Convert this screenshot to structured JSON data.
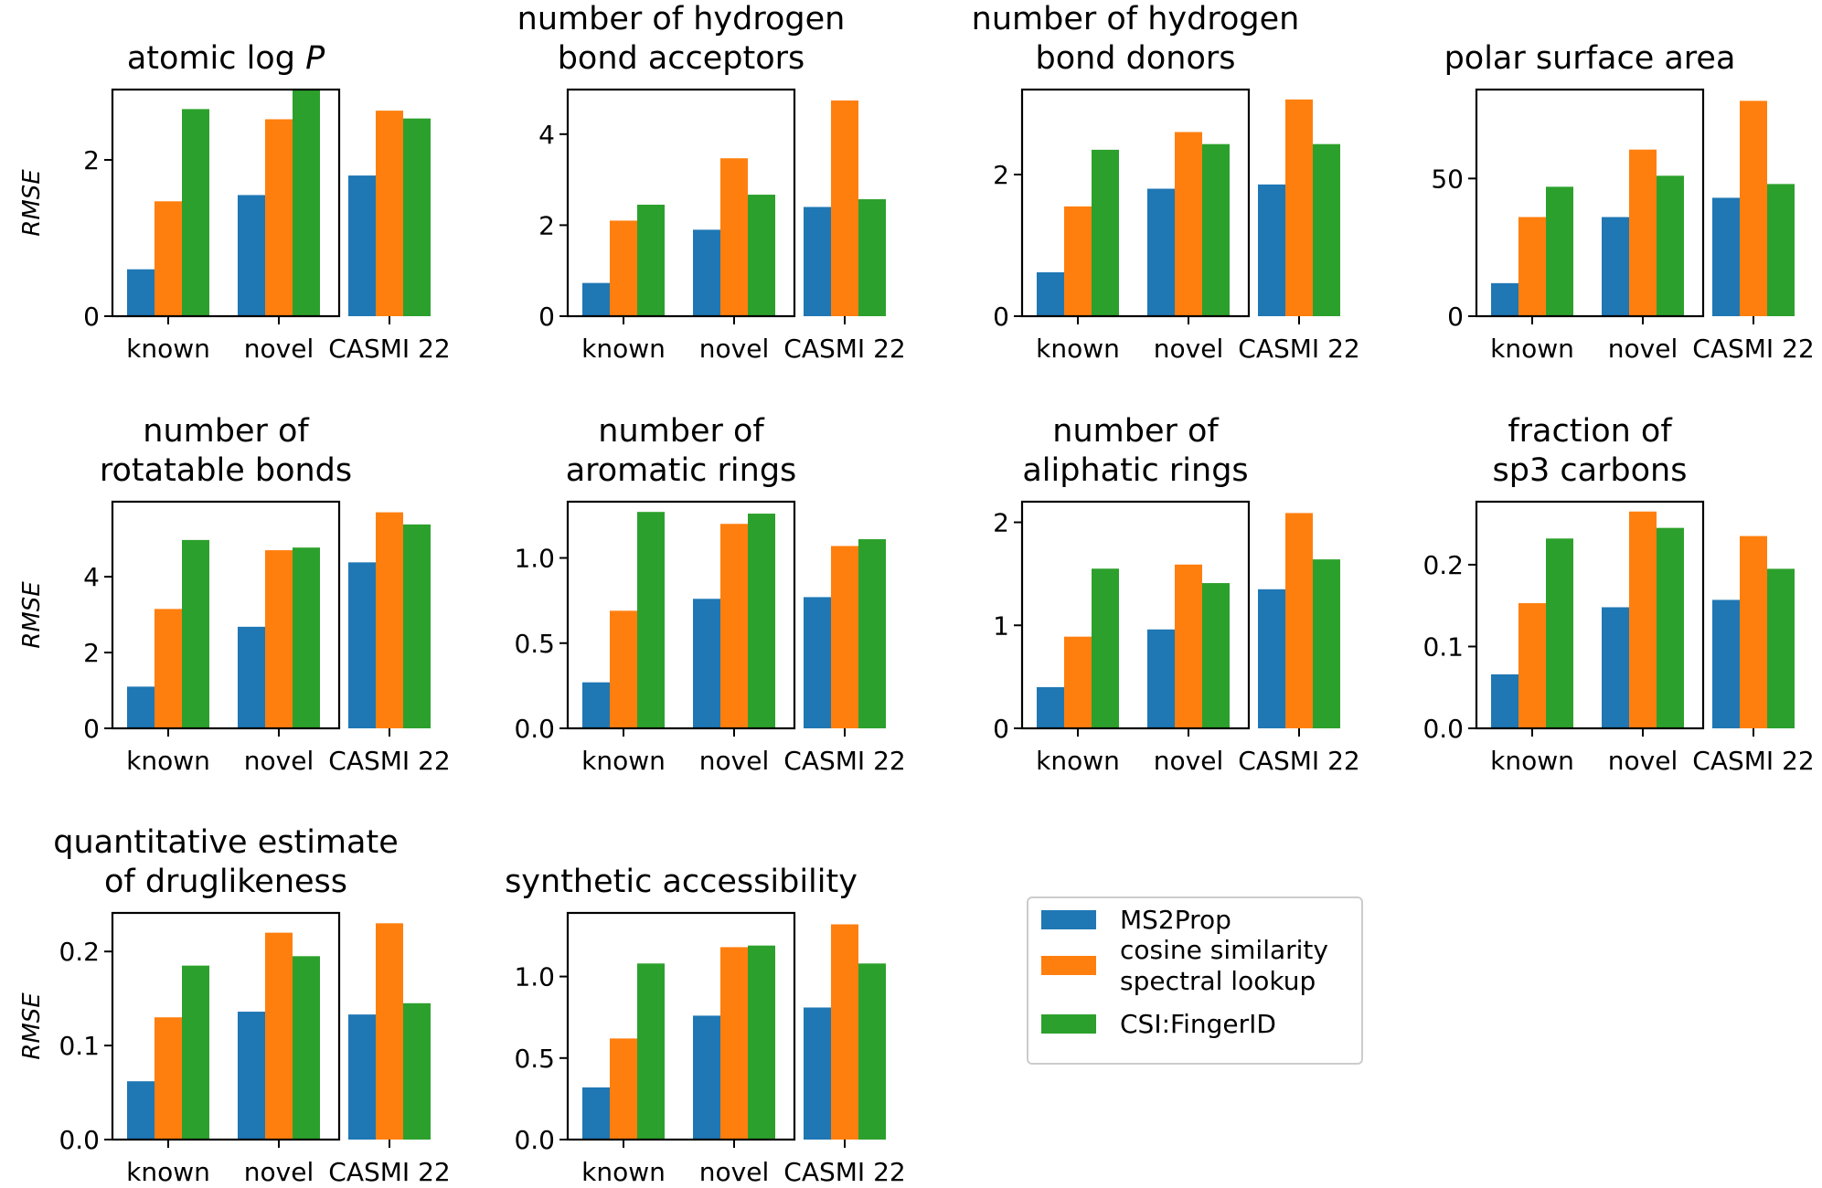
{
  "legend": [
    {
      "name": "MS2Prop",
      "color": "#1f77b4"
    },
    {
      "name": "cosine similarity\nspectral lookup",
      "color": "#ff7f0e"
    },
    {
      "name": "CSI:FingerID",
      "color": "#2ca02c"
    }
  ],
  "chart_data": [
    {
      "type": "bar",
      "title": [
        "atomic log ",
        "P"
      ],
      "title_italic_last": true,
      "ylabel": "RMSE",
      "categories": [
        "known",
        "novel",
        "CASMI 22"
      ],
      "ylim": [
        0,
        2.9
      ],
      "yticks": [
        0,
        2
      ],
      "ytick_labels": [
        "0",
        "2"
      ],
      "series": [
        {
          "name": "MS2Prop",
          "values": [
            0.6,
            1.55,
            1.8
          ]
        },
        {
          "name": "cosine similarity spectral lookup",
          "values": [
            1.47,
            2.52,
            2.63
          ]
        },
        {
          "name": "CSI:FingerID",
          "values": [
            2.65,
            2.9,
            2.53
          ]
        }
      ]
    },
    {
      "type": "bar",
      "title": [
        "number of hydrogen",
        "bond acceptors"
      ],
      "ylabel": "",
      "categories": [
        "known",
        "novel",
        "CASMI 22"
      ],
      "ylim": [
        0,
        4.98
      ],
      "yticks": [
        0,
        2,
        4
      ],
      "ytick_labels": [
        "0",
        "2",
        "4"
      ],
      "series": [
        {
          "name": "MS2Prop",
          "values": [
            0.73,
            1.9,
            2.4
          ]
        },
        {
          "name": "cosine similarity spectral lookup",
          "values": [
            2.1,
            3.47,
            4.74
          ]
        },
        {
          "name": "CSI:FingerID",
          "values": [
            2.45,
            2.67,
            2.57
          ]
        }
      ]
    },
    {
      "type": "bar",
      "title": [
        "number of hydrogen",
        "bond donors"
      ],
      "ylabel": "",
      "categories": [
        "known",
        "novel",
        "CASMI 22"
      ],
      "ylim": [
        0,
        3.2
      ],
      "yticks": [
        0,
        2
      ],
      "ytick_labels": [
        "0",
        "2"
      ],
      "series": [
        {
          "name": "MS2Prop",
          "values": [
            0.62,
            1.8,
            1.86
          ]
        },
        {
          "name": "cosine similarity spectral lookup",
          "values": [
            1.55,
            2.6,
            3.06
          ]
        },
        {
          "name": "CSI:FingerID",
          "values": [
            2.35,
            2.43,
            2.43
          ]
        }
      ]
    },
    {
      "type": "bar",
      "title": [
        "polar surface area"
      ],
      "ylabel": "",
      "categories": [
        "known",
        "novel",
        "CASMI 22"
      ],
      "ylim": [
        0,
        82.3
      ],
      "yticks": [
        0,
        50
      ],
      "ytick_labels": [
        "0",
        "50"
      ],
      "series": [
        {
          "name": "MS2Prop",
          "values": [
            12,
            36,
            43
          ]
        },
        {
          "name": "cosine similarity spectral lookup",
          "values": [
            36,
            60.5,
            78.2
          ]
        },
        {
          "name": "CSI:FingerID",
          "values": [
            47,
            51,
            48
          ]
        }
      ]
    },
    {
      "type": "bar",
      "title": [
        "number of",
        "rotatable bonds"
      ],
      "ylabel": "RMSE",
      "categories": [
        "known",
        "novel",
        "CASMI 22"
      ],
      "ylim": [
        0,
        5.98
      ],
      "yticks": [
        0,
        2,
        4
      ],
      "ytick_labels": [
        "0",
        "2",
        "4"
      ],
      "series": [
        {
          "name": "MS2Prop",
          "values": [
            1.1,
            2.68,
            4.38
          ]
        },
        {
          "name": "cosine similarity spectral lookup",
          "values": [
            3.15,
            4.7,
            5.7
          ]
        },
        {
          "name": "CSI:FingerID",
          "values": [
            4.97,
            4.77,
            5.38
          ]
        }
      ]
    },
    {
      "type": "bar",
      "title": [
        "number of",
        "aromatic rings"
      ],
      "ylabel": "",
      "categories": [
        "known",
        "novel",
        "CASMI 22"
      ],
      "ylim": [
        0,
        1.33
      ],
      "yticks": [
        0,
        0.5,
        1.0
      ],
      "ytick_labels": [
        "0.0",
        "0.5",
        "1.0"
      ],
      "series": [
        {
          "name": "MS2Prop",
          "values": [
            0.27,
            0.76,
            0.77
          ]
        },
        {
          "name": "cosine similarity spectral lookup",
          "values": [
            0.69,
            1.2,
            1.07
          ]
        },
        {
          "name": "CSI:FingerID",
          "values": [
            1.27,
            1.26,
            1.11
          ]
        }
      ]
    },
    {
      "type": "bar",
      "title": [
        "number of",
        "aliphatic rings"
      ],
      "ylabel": "",
      "categories": [
        "known",
        "novel",
        "CASMI 22"
      ],
      "ylim": [
        0,
        2.2
      ],
      "yticks": [
        0,
        1,
        2
      ],
      "ytick_labels": [
        "0",
        "1",
        "2"
      ],
      "series": [
        {
          "name": "MS2Prop",
          "values": [
            0.4,
            0.96,
            1.35
          ]
        },
        {
          "name": "cosine similarity spectral lookup",
          "values": [
            0.89,
            1.59,
            2.09
          ]
        },
        {
          "name": "CSI:FingerID",
          "values": [
            1.55,
            1.41,
            1.64
          ]
        }
      ]
    },
    {
      "type": "bar",
      "title": [
        "fraction of",
        "sp3 carbons"
      ],
      "ylabel": "",
      "categories": [
        "known",
        "novel",
        "CASMI 22"
      ],
      "ylim": [
        0,
        0.277
      ],
      "yticks": [
        0,
        0.1,
        0.2
      ],
      "ytick_labels": [
        "0.0",
        "0.1",
        "0.2"
      ],
      "series": [
        {
          "name": "MS2Prop",
          "values": [
            0.066,
            0.148,
            0.157
          ]
        },
        {
          "name": "cosine similarity spectral lookup",
          "values": [
            0.153,
            0.265,
            0.235
          ]
        },
        {
          "name": "CSI:FingerID",
          "values": [
            0.232,
            0.245,
            0.195
          ]
        }
      ]
    },
    {
      "type": "bar",
      "title": [
        "quantitative estimate",
        "of druglikeness"
      ],
      "ylabel": "RMSE",
      "categories": [
        "known",
        "novel",
        "CASMI 22"
      ],
      "ylim": [
        0,
        0.241
      ],
      "yticks": [
        0,
        0.1,
        0.2
      ],
      "ytick_labels": [
        "0.0",
        "0.1",
        "0.2"
      ],
      "series": [
        {
          "name": "MS2Prop",
          "values": [
            0.062,
            0.136,
            0.133
          ]
        },
        {
          "name": "cosine similarity spectral lookup",
          "values": [
            0.13,
            0.22,
            0.23
          ]
        },
        {
          "name": "CSI:FingerID",
          "values": [
            0.185,
            0.195,
            0.145
          ]
        }
      ]
    },
    {
      "type": "bar",
      "title": [
        "synthetic accessibility"
      ],
      "ylabel": "",
      "categories": [
        "known",
        "novel",
        "CASMI 22"
      ],
      "ylim": [
        0,
        1.39
      ],
      "yticks": [
        0,
        0.5,
        1.0
      ],
      "ytick_labels": [
        "0.0",
        "0.5",
        "1.0"
      ],
      "series": [
        {
          "name": "MS2Prop",
          "values": [
            0.32,
            0.76,
            0.81
          ]
        },
        {
          "name": "cosine similarity spectral lookup",
          "values": [
            0.62,
            1.18,
            1.32
          ]
        },
        {
          "name": "CSI:FingerID",
          "values": [
            1.08,
            1.19,
            1.08
          ]
        }
      ]
    }
  ]
}
